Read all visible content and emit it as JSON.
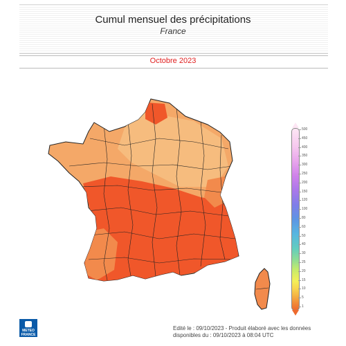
{
  "header": {
    "title": "Cumul mensuel des précipitations",
    "subtitle": "France",
    "month": "Octobre 2023"
  },
  "legend": {
    "ticks": [
      "500",
      "450",
      "400",
      "350",
      "300",
      "250",
      "200",
      "150",
      "120",
      "100",
      "80",
      "60",
      "50",
      "40",
      "30",
      "25",
      "20",
      "15",
      "10",
      "5",
      "1"
    ]
  },
  "colors": {
    "dark": "#f0572a",
    "mid": "#f28a4c",
    "light": "#f4a868",
    "lighter": "#f6bc7e",
    "accent": "#e02020"
  },
  "footer": {
    "line1": "Edité le : 09/10/2023 - Produit élaboré avec les données",
    "line2": "disponibles du : 09/10/2023 à 08:04 UTC"
  },
  "logo": {
    "text1": "METEO",
    "text2": "FRANCE"
  }
}
